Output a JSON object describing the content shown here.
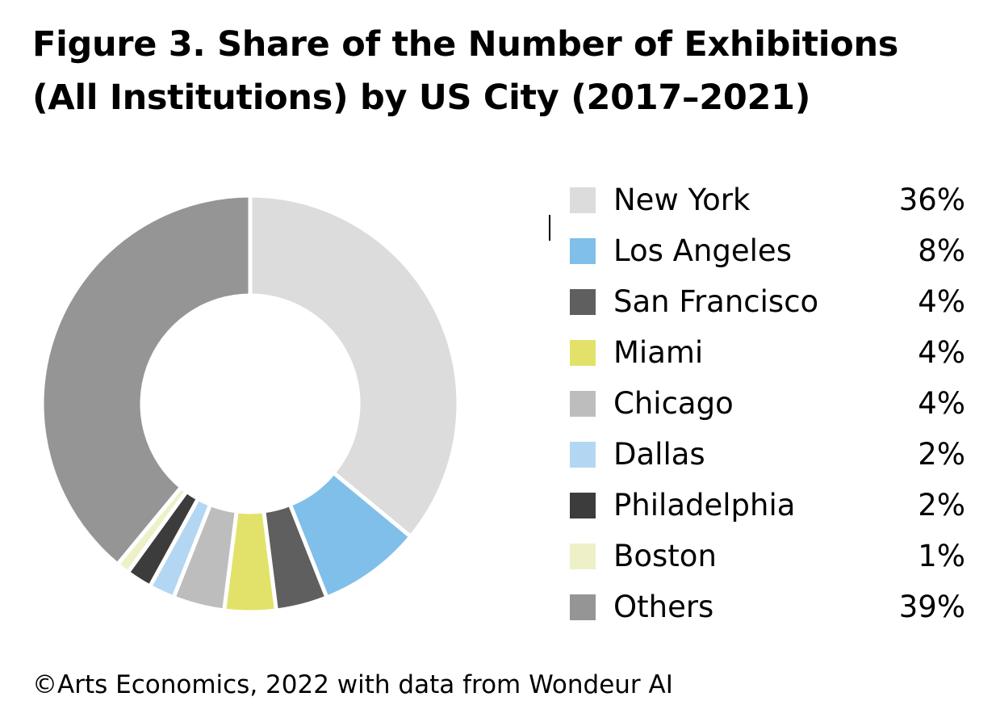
{
  "title_line1": "Figure 3. Share of the Number of Exhibitions",
  "title_line2": "(All Institutions) by US City (2017–2021)",
  "source": "©Arts Economics, 2022 with data from Wondeur AI",
  "chart_data": {
    "type": "pie",
    "donut": true,
    "title": "Figure 3. Share of the Number of Exhibitions (All Institutions) by US City (2017–2021)",
    "legend_position": "right",
    "unit": "%",
    "categories": [
      "New York",
      "Los Angeles",
      "San Francisco",
      "Miami",
      "Chicago",
      "Dallas",
      "Philadelphia",
      "Boston",
      "Others"
    ],
    "values": [
      36,
      8,
      4,
      4,
      4,
      2,
      2,
      1,
      39
    ],
    "value_labels": [
      "36%",
      "8%",
      "4%",
      "4%",
      "4%",
      "2%",
      "2%",
      "1%",
      "39%"
    ],
    "colors": [
      "#dcdcdc",
      "#7fbfe9",
      "#5f5f5f",
      "#e2e26a",
      "#bdbdbd",
      "#b3d7f2",
      "#3c3c3c",
      "#eef0c8",
      "#959595"
    ]
  }
}
